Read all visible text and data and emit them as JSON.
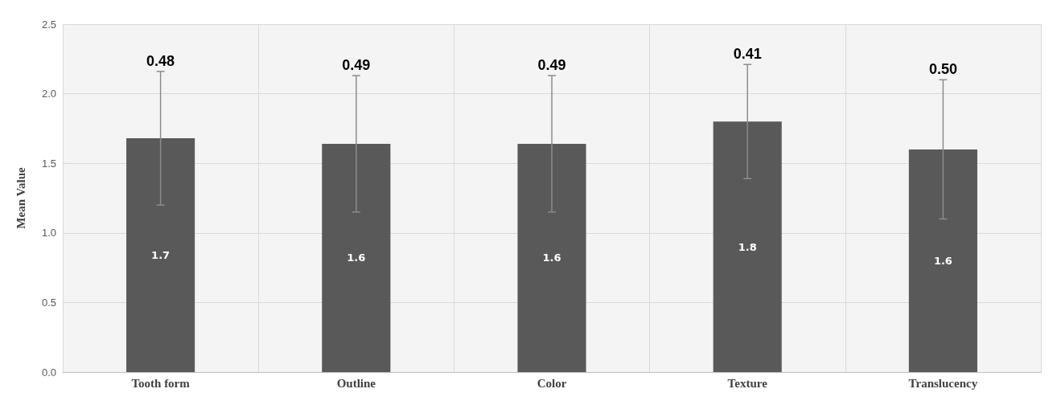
{
  "chart_data": {
    "type": "bar",
    "ylabel": "Mean Value",
    "categories": [
      "Tooth form",
      "Outline",
      "Color",
      "Texture",
      "Translucency"
    ],
    "values": [
      1.68,
      1.64,
      1.64,
      1.8,
      1.6
    ],
    "value_labels": [
      "1.7",
      "1.6",
      "1.6",
      "1.8",
      "1.6"
    ],
    "errors": [
      0.48,
      0.49,
      0.49,
      0.41,
      0.5
    ],
    "color": "#595959",
    "annotations": [
      {
        "text": "0.48",
        "x": "Tooth form",
        "y": 2.16
      },
      {
        "text": "0.49",
        "x": "Outline",
        "y": 2.13
      },
      {
        "text": "0.49",
        "x": "Color",
        "y": 2.13
      },
      {
        "text": "0.41",
        "x": "Texture",
        "y": 2.21
      },
      {
        "text": "0.50",
        "x": "Translucency",
        "y": 2.1
      }
    ],
    "ylim": [
      0,
      2.5
    ],
    "yticks": [
      {
        "value": 0,
        "label": "0.0"
      },
      {
        "value": 0.5,
        "label": "0.5"
      },
      {
        "value": 1,
        "label": "1.0"
      },
      {
        "value": 1.5,
        "label": "1.5"
      },
      {
        "value": 2,
        "label": "2.0"
      },
      {
        "value": 2.5,
        "label": "2.5"
      }
    ],
    "grid": true
  }
}
